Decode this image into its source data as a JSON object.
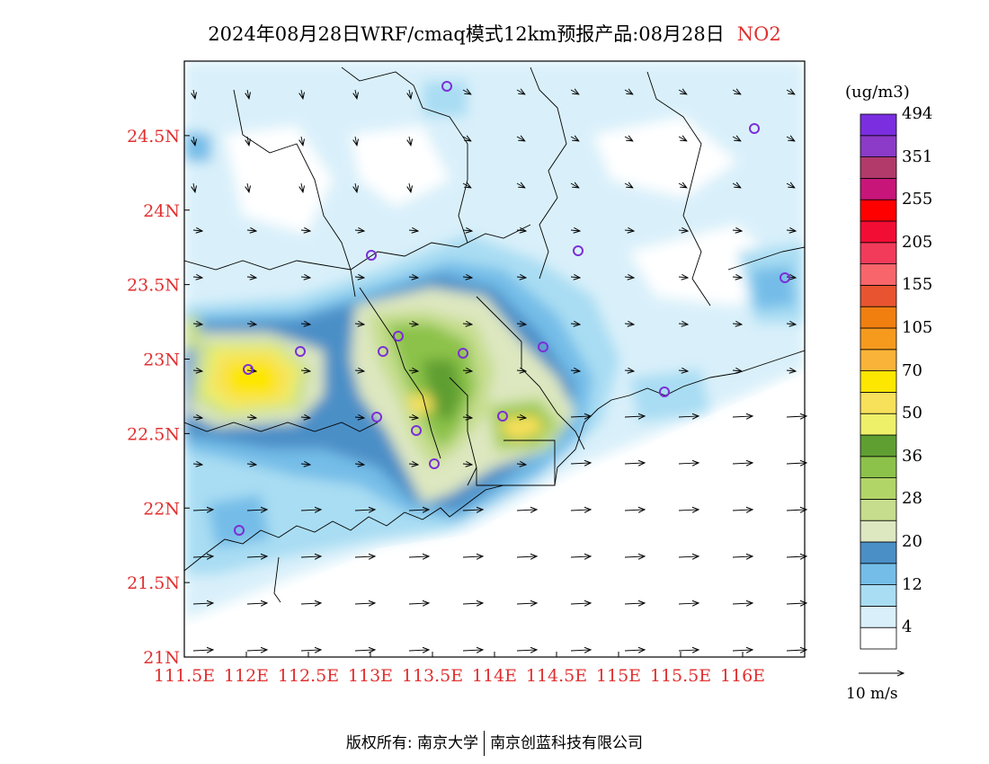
{
  "title": {
    "main": "2024年08月28日WRF/cmaq模式12km预报产品:08月28日",
    "pollutant": "NO2"
  },
  "map": {
    "lon_labels": [
      "111.5E",
      "112E",
      "112.5E",
      "113E",
      "113.5E",
      "114E",
      "114.5E",
      "115E",
      "115.5E",
      "116E"
    ],
    "lat_labels": [
      "24.5N",
      "24N",
      "23.5N",
      "23N",
      "22.5N",
      "22N",
      "21.5N",
      "21N"
    ],
    "lon_range": [
      111.5,
      116.5
    ],
    "lat_range": [
      21,
      25
    ],
    "axis_label_color": "#e03030",
    "city_marker_color": "#7b2fd6"
  },
  "colorbar": {
    "units": "(ug/m3)",
    "colors": [
      "#ffffff",
      "#d9f0fa",
      "#a9ddf3",
      "#74bde8",
      "#4b8fc7",
      "#dde7c0",
      "#c5dd8c",
      "#b2d568",
      "#8cc24a",
      "#5f9f32",
      "#eef06a",
      "#f7e05a",
      "#fde600",
      "#f9b338",
      "#f69a1e",
      "#f07f10",
      "#e8542f",
      "#f8656b",
      "#f23b5a",
      "#f20d34",
      "#fe0000",
      "#c8157a",
      "#b23a6a",
      "#8b3bc8",
      "#7a2ee0"
    ],
    "labels": [
      "4",
      "12",
      "20",
      "28",
      "36",
      "50",
      "70",
      "105",
      "155",
      "205",
      "255",
      "351",
      "494"
    ]
  },
  "wind_vector_legend": "10 m/s",
  "footer": {
    "left": "版权所有: 南京大学",
    "right": "南京创蓝科技有限公司"
  }
}
